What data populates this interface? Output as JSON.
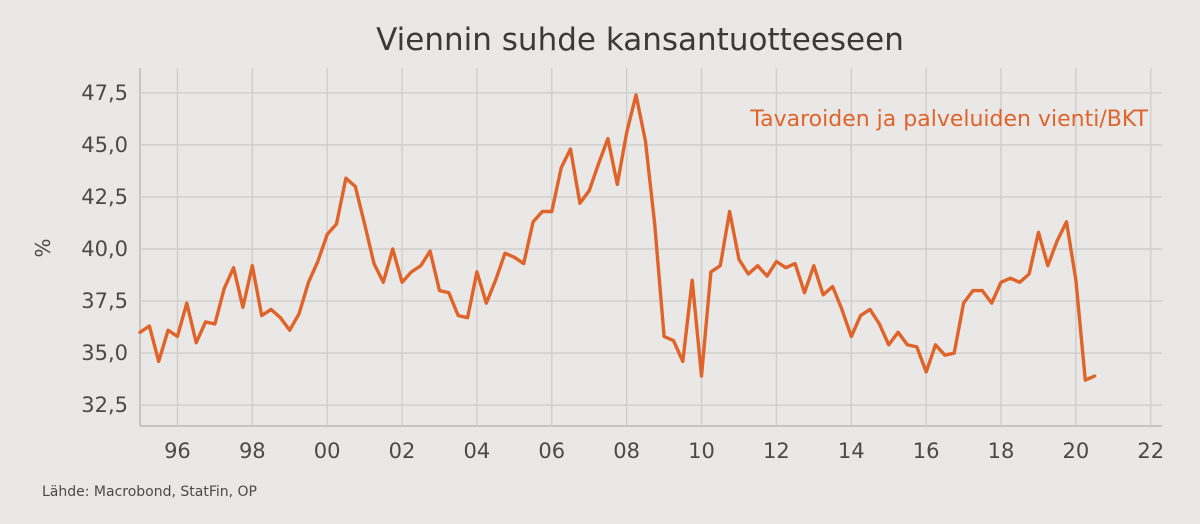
{
  "chart_data": {
    "type": "line",
    "title": "Viennin suhde kansantuotteeseen",
    "ylabel": "%",
    "xlabel": "",
    "source": "Lähde: Macrobond, StatFin, OP",
    "xlim": [
      1995,
      2022.3
    ],
    "ylim": [
      31.5,
      48.5
    ],
    "yticks": [
      "32,5",
      "35,0",
      "37,5",
      "40,0",
      "42,5",
      "45,0",
      "47,5"
    ],
    "ytick_values": [
      32.5,
      35.0,
      37.5,
      40.0,
      42.5,
      45.0,
      47.5
    ],
    "xticks": [
      "96",
      "98",
      "00",
      "02",
      "04",
      "06",
      "08",
      "10",
      "12",
      "14",
      "16",
      "18",
      "20",
      "22"
    ],
    "xtick_values": [
      1996,
      1998,
      2000,
      2002,
      2004,
      2006,
      2008,
      2010,
      2012,
      2014,
      2016,
      2018,
      2020,
      2022
    ],
    "grid": true,
    "colors": {
      "series": "#e0642a",
      "grid": "#cfcecb"
    },
    "series": [
      {
        "name": "Tavaroiden ja palveluiden vienti/BKT",
        "x": [
          1995.0,
          1995.25,
          1995.5,
          1995.75,
          1996.0,
          1996.25,
          1996.5,
          1996.75,
          1997.0,
          1997.25,
          1997.5,
          1997.75,
          1998.0,
          1998.25,
          1998.5,
          1998.75,
          1999.0,
          1999.25,
          1999.5,
          1999.75,
          2000.0,
          2000.25,
          2000.5,
          2000.75,
          2001.0,
          2001.25,
          2001.5,
          2001.75,
          2002.0,
          2002.25,
          2002.5,
          2002.75,
          2003.0,
          2003.25,
          2003.5,
          2003.75,
          2004.0,
          2004.25,
          2004.5,
          2004.75,
          2005.0,
          2005.25,
          2005.5,
          2005.75,
          2006.0,
          2006.25,
          2006.5,
          2006.75,
          2007.0,
          2007.25,
          2007.5,
          2007.75,
          2008.0,
          2008.25,
          2008.5,
          2008.75,
          2009.0,
          2009.25,
          2009.5,
          2009.75,
          2010.0,
          2010.25,
          2010.5,
          2010.75,
          2011.0,
          2011.25,
          2011.5,
          2011.75,
          2012.0,
          2012.25,
          2012.5,
          2012.75,
          2013.0,
          2013.25,
          2013.5,
          2013.75,
          2014.0,
          2014.25,
          2014.5,
          2014.75,
          2015.0,
          2015.25,
          2015.5,
          2015.75,
          2016.0,
          2016.25,
          2016.5,
          2016.75,
          2017.0,
          2017.25,
          2017.5,
          2017.75,
          2018.0,
          2018.25,
          2018.5,
          2018.75,
          2019.0,
          2019.25,
          2019.5,
          2019.75,
          2020.0,
          2020.25,
          2020.5
        ],
        "values": [
          36.0,
          36.3,
          34.6,
          36.1,
          35.8,
          37.4,
          35.5,
          36.5,
          36.4,
          38.1,
          39.1,
          37.2,
          39.2,
          36.8,
          37.1,
          36.7,
          36.1,
          36.9,
          38.4,
          39.4,
          40.7,
          41.2,
          43.4,
          43.0,
          41.2,
          39.3,
          38.4,
          40.0,
          38.4,
          38.9,
          39.2,
          39.9,
          38.0,
          37.9,
          36.8,
          36.7,
          38.9,
          37.4,
          38.5,
          39.8,
          39.6,
          39.3,
          41.3,
          41.8,
          41.8,
          43.9,
          44.8,
          42.2,
          42.8,
          44.1,
          45.3,
          43.1,
          45.6,
          47.4,
          45.2,
          41.2,
          35.8,
          35.6,
          34.6,
          38.5,
          33.9,
          38.9,
          39.2,
          41.8,
          39.5,
          38.8,
          39.2,
          38.7,
          39.4,
          39.1,
          39.3,
          37.9,
          39.2,
          37.8,
          38.2,
          37.1,
          35.8,
          36.8,
          37.1,
          36.4,
          35.4,
          36.0,
          35.4,
          35.3,
          34.1,
          35.4,
          34.9,
          35.0,
          37.4,
          38.0,
          38.0,
          37.4,
          38.4,
          38.6,
          38.4,
          38.8,
          40.8,
          39.2,
          40.4,
          41.3,
          38.5,
          33.7,
          33.9
        ]
      }
    ]
  }
}
